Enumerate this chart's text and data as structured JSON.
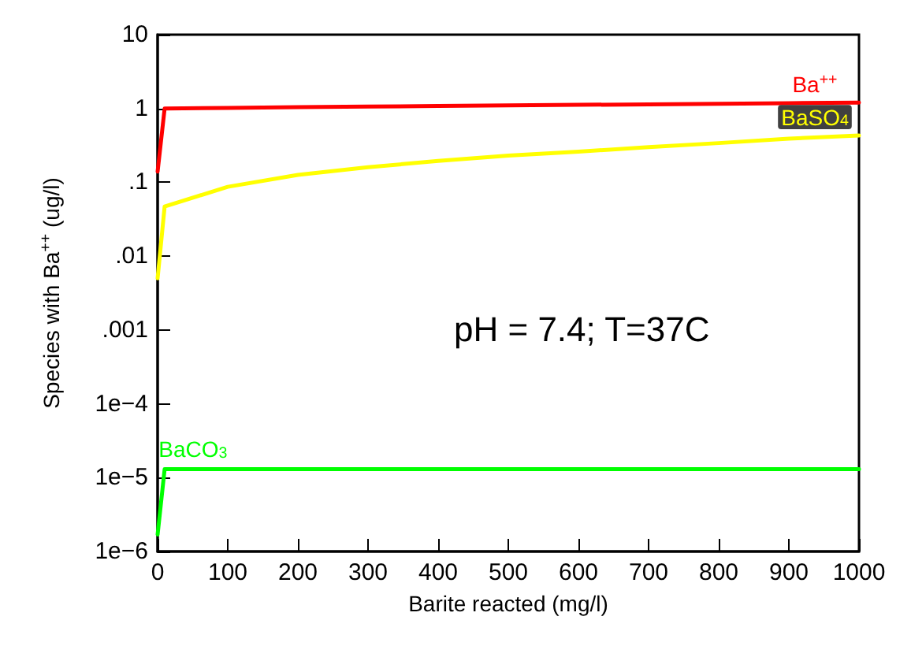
{
  "chart_data": {
    "type": "line",
    "xlabel": "Barite reacted (mg/l)",
    "ylabel": "Species with Ba$^{++}$ (ug/l)",
    "log": "y",
    "x": [
      0,
      10,
      100,
      200,
      300,
      400,
      500,
      600,
      700,
      800,
      900,
      1000
    ],
    "series": [
      {
        "name": "Ba$^{++}$",
        "color": "#ff0000",
        "values": [
          0.14,
          1.0,
          1.02,
          1.04,
          1.06,
          1.08,
          1.1,
          1.12,
          1.14,
          1.16,
          1.18,
          1.2
        ]
      },
      {
        "name": "BaSO$_{4}$",
        "color": "#ffff00",
        "values": [
          0.005,
          0.047,
          0.087,
          0.126,
          0.16,
          0.195,
          0.23,
          0.26,
          0.3,
          0.34,
          0.39,
          0.43
        ]
      },
      {
        "name": "BaCO$_{3}$",
        "color": "#00ff00",
        "values": [
          1.7e-06,
          1.3e-05,
          1.3e-05,
          1.3e-05,
          1.3e-05,
          1.3e-05,
          1.3e-05,
          1.3e-05,
          1.3e-05,
          1.3e-05,
          1.3e-05,
          1.3e-05
        ]
      }
    ],
    "xlim": [
      0,
      1000
    ],
    "xticks": [
      0,
      100,
      200,
      300,
      400,
      500,
      600,
      700,
      800,
      900,
      1000
    ],
    "ylim": [
      1e-06,
      10
    ],
    "yticks": [
      {
        "value": 10,
        "label": "10"
      },
      {
        "value": 1,
        "label": "1"
      },
      {
        "value": 0.1,
        "label": ".1"
      },
      {
        "value": 0.01,
        "label": ".01"
      },
      {
        "value": 0.001,
        "label": ".001"
      },
      {
        "value": 0.0001,
        "label": "1e−4"
      },
      {
        "value": 1e-05,
        "label": "1e−5"
      },
      {
        "value": 1e-06,
        "label": "1e−6"
      }
    ],
    "grid": false,
    "legend": false,
    "marker": "none",
    "line_style": "solid",
    "annotations": [
      "pH = 7.4; T=37C"
    ]
  }
}
